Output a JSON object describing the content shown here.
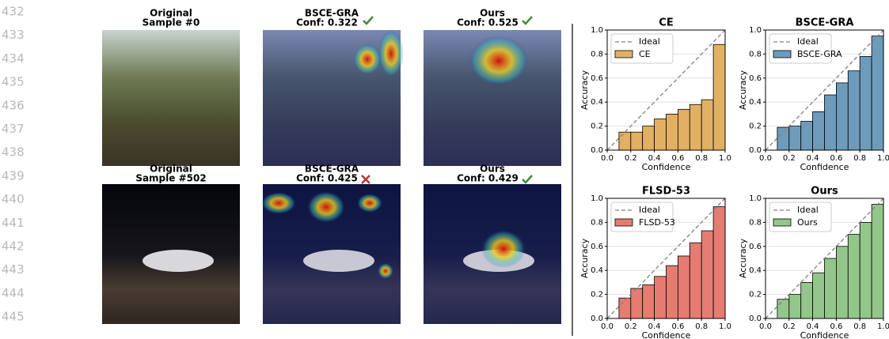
{
  "line_numbers": [
    "432",
    "433",
    "434",
    "435",
    "436",
    "437",
    "438",
    "439",
    "440",
    "441",
    "442",
    "443",
    "444",
    "445"
  ],
  "panels": [
    {
      "title": "Original",
      "subtitle": "Sample #0"
    },
    {
      "title": "BSCE-GRA",
      "subtitle": "Conf: 0.322"
    },
    {
      "title": "Ours",
      "subtitle": "Conf: 0.525"
    },
    {
      "title": "Original",
      "subtitle": "Sample #502"
    },
    {
      "title": "BSCE-GRA",
      "subtitle": "Conf: 0.425"
    },
    {
      "title": "Ours",
      "subtitle": "Conf: 0.429"
    }
  ],
  "chart_data": [
    {
      "type": "histogram",
      "title": "CE",
      "x_label": "Confidence",
      "y_label": "Accuracy",
      "ideal_label": "Ideal",
      "ideal_color": "#808080",
      "bins": [
        0.1,
        0.2,
        0.3,
        0.4,
        0.5,
        0.6,
        0.7,
        0.8,
        0.9,
        1.0
      ],
      "series": [
        {
          "name": "CE",
          "color": "#e2b063",
          "values": [
            0.15,
            0.15,
            0.2,
            0.26,
            0.3,
            0.34,
            0.38,
            0.42,
            0.88
          ]
        }
      ],
      "xlim": [
        0,
        1
      ],
      "ylim": [
        0,
        1
      ],
      "grid": true,
      "xticks": [
        {
          "value": 0,
          "label": "0.0"
        },
        0.2,
        0.4,
        0.6,
        0.8,
        {
          "value": 1,
          "label": "1.0"
        }
      ],
      "yticks": [
        {
          "value": 0,
          "label": "0.0"
        },
        0.2,
        0.4,
        0.6,
        0.8,
        {
          "value": 1,
          "label": "1.0"
        }
      ]
    },
    {
      "type": "histogram",
      "title": "BSCE-GRA",
      "x_label": "Confidence",
      "y_label": "Accuracy",
      "ideal_label": "Ideal",
      "ideal_color": "#808080",
      "bins": [
        0.1,
        0.2,
        0.3,
        0.4,
        0.5,
        0.6,
        0.7,
        0.8,
        0.9,
        1.0
      ],
      "series": [
        {
          "name": "BSCE-GRA",
          "color": "#6f9bbb",
          "values": [
            0.19,
            0.2,
            0.24,
            0.32,
            0.46,
            0.56,
            0.66,
            0.78,
            0.95
          ]
        }
      ],
      "xlim": [
        0,
        1
      ],
      "ylim": [
        0,
        1
      ],
      "grid": true,
      "xticks": [
        {
          "value": 0,
          "label": "0.0"
        },
        0.2,
        0.4,
        0.6,
        0.8,
        {
          "value": 1,
          "label": "1.0"
        }
      ],
      "yticks": [
        {
          "value": 0,
          "label": "0.0"
        },
        0.2,
        0.4,
        0.6,
        0.8,
        {
          "value": 1,
          "label": "1.0"
        }
      ]
    },
    {
      "type": "histogram",
      "title": "FLSD-53",
      "x_label": "Confidence",
      "y_label": "Accuracy",
      "ideal_label": "Ideal",
      "ideal_color": "#808080",
      "bins": [
        0.1,
        0.2,
        0.3,
        0.4,
        0.5,
        0.6,
        0.7,
        0.8,
        0.9,
        1.0
      ],
      "series": [
        {
          "name": "FLSD-53",
          "color": "#e57c72",
          "values": [
            0.17,
            0.25,
            0.28,
            0.35,
            0.44,
            0.52,
            0.63,
            0.73,
            0.93
          ]
        }
      ],
      "xlim": [
        0,
        1
      ],
      "ylim": [
        0,
        1
      ],
      "grid": true,
      "xticks": [
        {
          "value": 0,
          "label": "0.0"
        },
        0.2,
        0.4,
        0.6,
        0.8,
        {
          "value": 1,
          "label": "1.0"
        }
      ],
      "yticks": [
        {
          "value": 0,
          "label": "0.0"
        },
        0.2,
        0.4,
        0.6,
        0.8,
        {
          "value": 1,
          "label": "1.0"
        }
      ]
    },
    {
      "type": "histogram",
      "title": "Ours",
      "x_label": "Confidence",
      "y_label": "Accuracy",
      "ideal_label": "Ideal",
      "ideal_color": "#808080",
      "bins": [
        0.1,
        0.2,
        0.3,
        0.4,
        0.5,
        0.6,
        0.7,
        0.8,
        0.9,
        1.0
      ],
      "series": [
        {
          "name": "Ours",
          "color": "#93c68a",
          "values": [
            0.16,
            0.2,
            0.3,
            0.38,
            0.5,
            0.6,
            0.7,
            0.8,
            0.95
          ]
        }
      ],
      "xlim": [
        0,
        1
      ],
      "ylim": [
        0,
        1
      ],
      "grid": true,
      "xticks": [
        {
          "value": 0,
          "label": "0.0"
        },
        0.2,
        0.4,
        0.6,
        0.8,
        {
          "value": 1,
          "label": "1.0"
        }
      ],
      "yticks": [
        {
          "value": 0,
          "label": "0.0"
        },
        0.2,
        0.4,
        0.6,
        0.8,
        {
          "value": 1,
          "label": "1.0"
        }
      ]
    }
  ]
}
